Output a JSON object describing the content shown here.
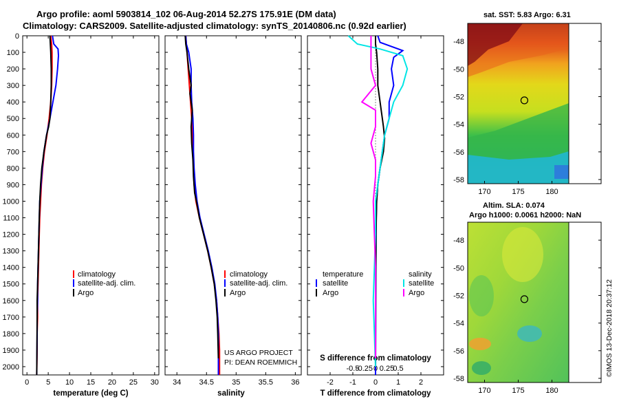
{
  "title": {
    "line1": "Argo profile: aoml 5903814_102 06-Aug-2014 52.27S 175.91E (DM data)",
    "line2": "Climatology: CARS2009. Satellite-adjusted climatology: synTS_20140806.nc (0.92d earlier)"
  },
  "colors": {
    "climatology": "#ff0000",
    "satellite": "#0000ff",
    "argo": "#000000",
    "sat_salinity": "#00e5e5",
    "argo_salinity": "#ff00ff"
  },
  "depth_axis": {
    "ylim": [
      0,
      2050
    ],
    "ticks": [
      0,
      100,
      200,
      300,
      400,
      500,
      600,
      700,
      800,
      900,
      1000,
      1100,
      1200,
      1300,
      1400,
      1500,
      1600,
      1700,
      1800,
      1900,
      2000
    ],
    "tick_labels": [
      "0",
      "100",
      "200",
      "300",
      "400",
      "500",
      "600",
      "700",
      "800",
      "900",
      "1000",
      "1100",
      "1200",
      "1300",
      "1400",
      "1500",
      "1600",
      "1700",
      "1800",
      "1900",
      "2000"
    ]
  },
  "chart_data": [
    {
      "type": "line",
      "name": "temperature",
      "xlabel": "temperature (deg C)",
      "xlim": [
        -1,
        31
      ],
      "xticks": [
        0,
        5,
        10,
        15,
        20,
        25,
        30
      ],
      "xtick_labels": [
        "0",
        "5",
        "10",
        "15",
        "20",
        "25",
        "30"
      ],
      "legend": [
        "climatology",
        "satellite-adj. clim.",
        "Argo"
      ],
      "series": [
        {
          "name": "climatology",
          "color": "#ff0000",
          "x": [
            5.6,
            5.8,
            5.9,
            5.9,
            5.8,
            5.6,
            5.2,
            4.7,
            4.1,
            3.7,
            3.4,
            3.2,
            3.0,
            2.9,
            2.8,
            2.7,
            2.6,
            2.5,
            2.5,
            2.4,
            2.4,
            2.3
          ],
          "depth": [
            0,
            50,
            100,
            200,
            300,
            400,
            500,
            600,
            700,
            800,
            900,
            1000,
            1100,
            1200,
            1300,
            1400,
            1500,
            1600,
            1700,
            1800,
            1900,
            2050
          ]
        },
        {
          "name": "satellite-adj. clim.",
          "color": "#0000ff",
          "x": [
            6.0,
            6.3,
            7.3,
            7.4,
            7.2,
            6.8,
            6.1,
            5.4,
            4.6,
            4.0,
            3.6,
            3.3,
            3.0,
            2.9,
            2.8,
            2.7,
            2.6,
            2.5,
            2.5,
            2.4,
            2.4,
            2.3
          ],
          "depth": [
            0,
            50,
            80,
            120,
            200,
            300,
            400,
            500,
            600,
            700,
            800,
            900,
            1000,
            1100,
            1200,
            1300,
            1400,
            1500,
            1600,
            1700,
            1800,
            2050
          ]
        },
        {
          "name": "Argo",
          "color": "#000000",
          "x": [
            5.4,
            5.5,
            5.6,
            5.7,
            5.7,
            5.6,
            5.4,
            5.1,
            4.6,
            4.0,
            3.5,
            3.2,
            3.0,
            2.9,
            2.8,
            2.7,
            2.6,
            2.5,
            2.4,
            2.4,
            2.3
          ],
          "depth": [
            0,
            50,
            100,
            200,
            300,
            400,
            500,
            550,
            600,
            700,
            800,
            900,
            1000,
            1100,
            1200,
            1300,
            1400,
            1500,
            1600,
            1700,
            2050
          ]
        }
      ]
    },
    {
      "type": "line",
      "name": "salinity",
      "xlabel": "salinity",
      "xlim": [
        33.8,
        36.1
      ],
      "xticks": [
        34,
        34.5,
        35,
        35.5,
        36
      ],
      "xtick_labels": [
        "34",
        "34.5",
        "35",
        "35.5",
        "36"
      ],
      "legend": [
        "climatology",
        "satellite-adj. clim.",
        "Argo"
      ],
      "credits": [
        "US ARGO PROJECT",
        "PI: DEAN ROEMMICH"
      ],
      "series": [
        {
          "name": "climatology",
          "color": "#ff0000",
          "x": [
            34.15,
            34.16,
            34.17,
            34.19,
            34.21,
            34.23,
            34.25,
            34.26,
            34.27,
            34.28,
            34.29,
            34.32,
            34.38,
            34.45,
            34.52,
            34.58,
            34.63,
            34.67,
            34.69,
            34.71,
            34.72,
            34.72
          ],
          "depth": [
            0,
            50,
            100,
            200,
            300,
            400,
            500,
            600,
            700,
            800,
            900,
            1000,
            1100,
            1200,
            1300,
            1400,
            1500,
            1600,
            1700,
            1800,
            1900,
            2050
          ]
        },
        {
          "name": "satellite-adj. clim.",
          "color": "#0000ff",
          "x": [
            34.15,
            34.16,
            34.2,
            34.24,
            34.24,
            34.25,
            34.27,
            34.28,
            34.28,
            34.29,
            34.31,
            34.34,
            34.39,
            34.46,
            34.53,
            34.59,
            34.64,
            34.67,
            34.69,
            34.7,
            34.7
          ],
          "depth": [
            0,
            50,
            100,
            200,
            300,
            400,
            500,
            600,
            700,
            800,
            900,
            1000,
            1100,
            1200,
            1300,
            1400,
            1500,
            1600,
            1700,
            1800,
            2050
          ]
        },
        {
          "name": "Argo",
          "color": "#000000",
          "x": [
            34.14,
            34.15,
            34.17,
            34.2,
            34.24,
            34.22,
            34.26,
            34.24,
            34.25,
            34.27,
            34.28,
            34.3,
            34.33,
            34.38,
            34.45,
            34.52,
            34.58,
            34.63,
            34.66,
            34.68,
            34.69,
            34.7
          ],
          "depth": [
            0,
            50,
            100,
            200,
            300,
            350,
            450,
            550,
            650,
            750,
            850,
            950,
            1000,
            1100,
            1200,
            1300,
            1400,
            1500,
            1600,
            1700,
            1800,
            1950
          ]
        }
      ]
    },
    {
      "type": "line",
      "name": "differences",
      "xlabel": "T difference from climatology",
      "xlim": [
        -3,
        3
      ],
      "xticks": [
        -2,
        -1,
        0,
        1,
        2
      ],
      "xtick_labels": [
        "-2",
        "-1",
        "0",
        "1",
        "2"
      ],
      "s_axis_label": "S difference from climatology",
      "s_ticks": [
        "-0.5",
        "-0.25",
        "0",
        "0.25",
        "0.5"
      ],
      "s_tick_values": [
        -0.5,
        -0.25,
        0,
        0.25,
        0.5
      ],
      "legend_temp_header": "temperature",
      "legend_sal_header": "salinity",
      "legend_temp": [
        "satellite",
        "Argo"
      ],
      "legend_sal": [
        "satellite",
        "Argo"
      ],
      "series": [
        {
          "name": "T satellite",
          "color": "#0000ff",
          "x": [
            0.1,
            0.2,
            1.2,
            0.8,
            0.7,
            0.8,
            0.6,
            0.6,
            0.5,
            0.4,
            0.3,
            0.2,
            0.1,
            0.05,
            0.03,
            0.02,
            0.01,
            0.0
          ],
          "depth": [
            0,
            40,
            90,
            130,
            200,
            300,
            400,
            500,
            550,
            600,
            700,
            800,
            900,
            1000,
            1100,
            1300,
            1600,
            2050
          ]
        },
        {
          "name": "T Argo",
          "color": "#000000",
          "x": [
            0.0,
            0.0,
            0.05,
            0.1,
            0.1,
            0.2,
            0.3,
            0.35,
            0.4,
            0.35,
            0.2,
            0.1,
            0.05,
            0.02,
            0.01,
            0.0
          ],
          "depth": [
            0,
            50,
            100,
            200,
            300,
            400,
            500,
            550,
            620,
            700,
            800,
            900,
            1000,
            1200,
            1500,
            2000
          ]
        },
        {
          "name": "S satellite",
          "color": "#00e5e5",
          "x": [
            -0.6,
            -0.4,
            0.1,
            0.6,
            0.7,
            0.6,
            0.4,
            0.3,
            0.2,
            0.15,
            0.1,
            0.05,
            0.0,
            0.0,
            -0.05,
            0.0
          ],
          "depth": [
            0,
            50,
            80,
            120,
            200,
            300,
            400,
            500,
            600,
            700,
            800,
            900,
            1000,
            1200,
            1600,
            2000
          ]
        },
        {
          "name": "S Argo",
          "color": "#ff00ff",
          "x": [
            -0.1,
            -0.1,
            -0.1,
            -0.1,
            0.0,
            -0.3,
            0.0,
            0.0,
            -0.1,
            0.0,
            0.0,
            -0.05,
            0.0,
            0.0
          ],
          "depth": [
            0,
            50,
            100,
            200,
            300,
            400,
            450,
            550,
            650,
            750,
            850,
            1000,
            1400,
            1950
          ]
        }
      ]
    },
    {
      "type": "heatmap",
      "name": "sst-map",
      "title": "sat. SST: 5.83 Argo: 6.31",
      "x_ticks": [
        "170",
        "175",
        "180"
      ],
      "x_tick_values": [
        170,
        175,
        180
      ],
      "y_ticks": [
        "-48",
        "-50",
        "-52",
        "-54",
        "-56",
        "-58"
      ],
      "y_tick_values": [
        -48,
        -50,
        -52,
        -54,
        -56,
        -58
      ],
      "xlim": [
        167.5,
        182.5
      ],
      "ylim": [
        -58.3,
        -46.7
      ],
      "argo_marker": {
        "lon": 175.91,
        "lat": -52.27
      }
    },
    {
      "type": "heatmap",
      "name": "sla-map",
      "title": "Altim. SLA: 0.074",
      "subtitle": "Argo h1000: 0.0061 h2000: NaN",
      "x_ticks": [
        "170",
        "175",
        "180"
      ],
      "x_tick_values": [
        170,
        175,
        180
      ],
      "y_ticks": [
        "-48",
        "-50",
        "-52",
        "-54",
        "-56",
        "-58"
      ],
      "y_tick_values": [
        -48,
        -50,
        -52,
        -54,
        -56,
        -58
      ],
      "xlim": [
        167.5,
        182.5
      ],
      "ylim": [
        -58.3,
        -46.7
      ],
      "argo_marker": {
        "lon": 175.91,
        "lat": -52.27
      }
    }
  ],
  "credit_vertical": "©IMOS 13-Dec-2018 20:37:12"
}
